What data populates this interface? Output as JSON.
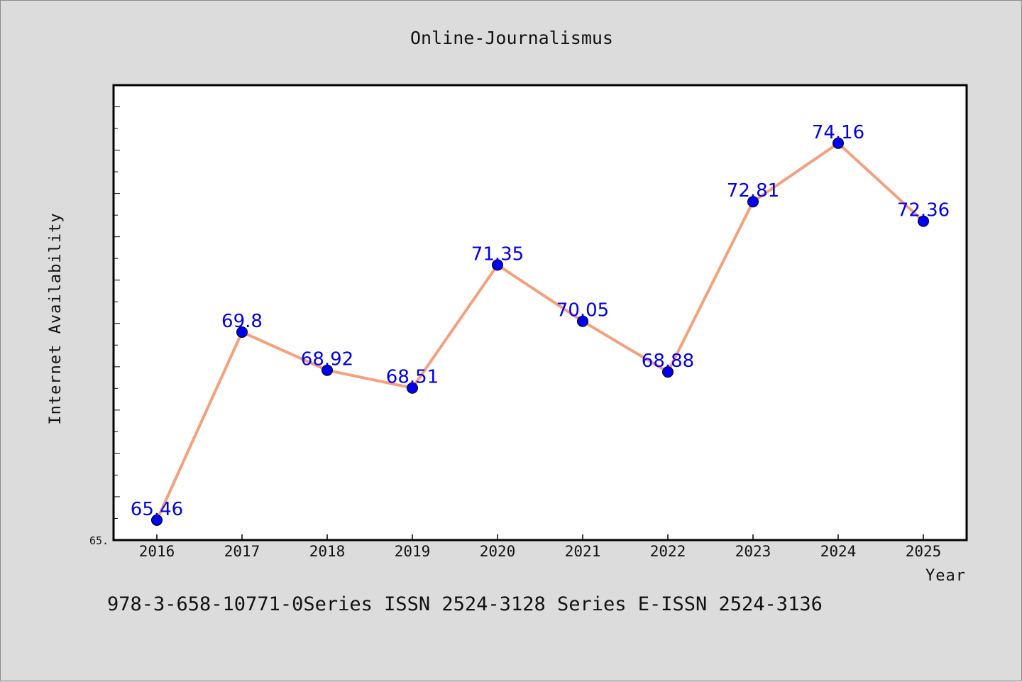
{
  "chart_data": {
    "type": "line",
    "title": "Online-Journalismus",
    "xlabel": "Year",
    "ylabel": "Internet Availability",
    "categories": [
      "2016",
      "2017",
      "2018",
      "2019",
      "2020",
      "2021",
      "2022",
      "2023",
      "2024",
      "2025"
    ],
    "series": [
      {
        "values": [
          65.46,
          69.8,
          68.92,
          68.51,
          71.35,
          70.05,
          68.88,
          72.81,
          74.16,
          72.36
        ]
      }
    ],
    "data_labels": [
      "65.46",
      "69.8",
      "68.92",
      "68.51",
      "71.35",
      "70.05",
      "68.88",
      "72.81",
      "74.16",
      "72.36"
    ],
    "ylim": [
      65.0,
      75.5
    ],
    "ytick_label": "65.",
    "grid": false,
    "line_color": "#f4a07e",
    "marker_color": "#0000f0",
    "label_color": "#0000f0"
  },
  "footer": "978-3-658-10771-0Series ISSN 2524-3128 Series E-ISSN 2524-3136"
}
